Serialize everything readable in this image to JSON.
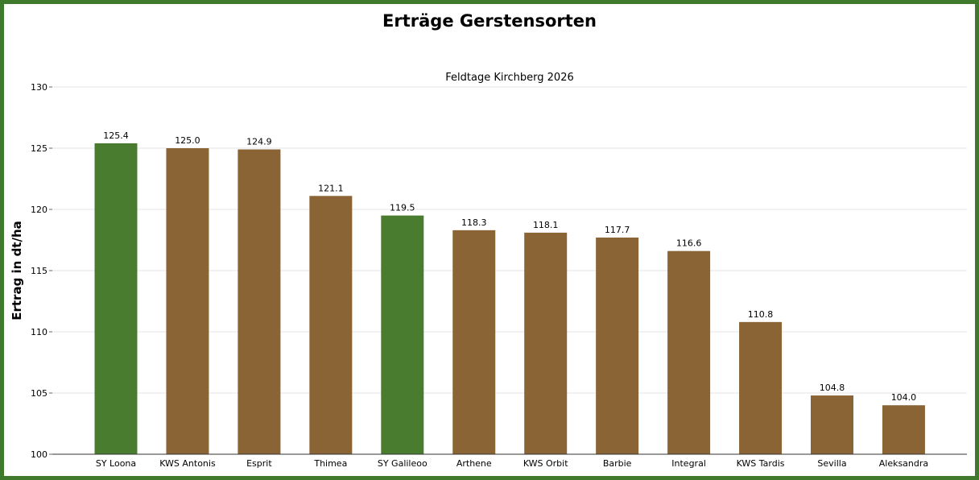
{
  "chart_data": {
    "type": "bar",
    "title": "Erträge Gerstensorten",
    "subtitle": "Feldtage Kirchberg 2026",
    "xlabel": "",
    "ylabel": "Ertrag in dt/ha",
    "ylim": [
      100,
      130
    ],
    "yticks": [
      100,
      105,
      110,
      115,
      120,
      125,
      130
    ],
    "grid": true,
    "categories": [
      "SY Loona",
      "KWS Antonis",
      "Esprit",
      "Thimea",
      "SY Galileoo",
      "Arthene",
      "KWS Orbit",
      "Barbie",
      "Integral",
      "KWS Tardis",
      "Sevilla",
      "Aleksandra"
    ],
    "values": [
      125.4,
      125.0,
      124.9,
      121.1,
      119.5,
      118.3,
      118.1,
      117.7,
      116.6,
      110.8,
      104.8,
      104.0
    ],
    "value_labels": [
      "125.4",
      "125.0",
      "124.9",
      "121.1",
      "119.5",
      "118.3",
      "118.1",
      "117.7",
      "116.6",
      "110.8",
      "104.8",
      "104.0"
    ],
    "bar_colors": [
      "#4a7c30",
      "#8b6436",
      "#8b6436",
      "#8b6436",
      "#4a7c30",
      "#8b6436",
      "#8b6436",
      "#8b6436",
      "#8b6436",
      "#8b6436",
      "#8b6436",
      "#8b6436"
    ]
  },
  "colors": {
    "frame": "#3f7a2c",
    "highlight": "#4a7c30",
    "default": "#8b6436",
    "grid": "#e6e6e6"
  }
}
